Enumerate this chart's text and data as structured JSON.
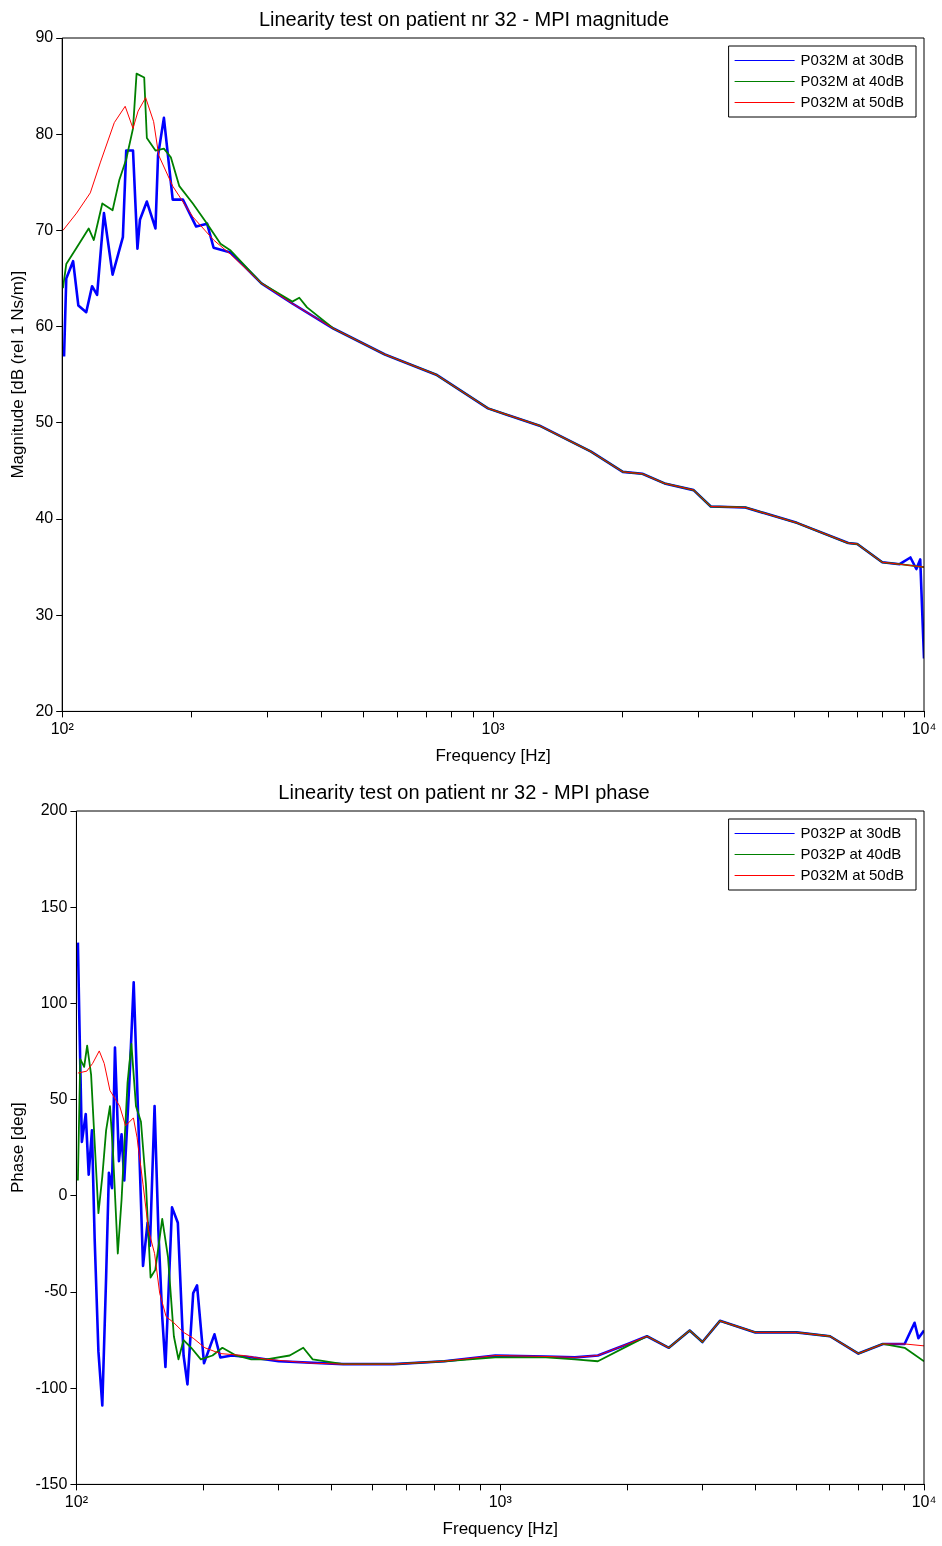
{
  "chart_data": [
    {
      "type": "line",
      "title": "Linearity test on patient nr 32 - MPI magnitude",
      "xlabel": "Frequency [Hz]",
      "ylabel": "Magnitude [dB (rel 1 Ns/m)]",
      "log": "x",
      "xlim": [
        100,
        10000
      ],
      "xticks": [
        {
          "value": 100,
          "label": "10²"
        },
        {
          "value": 200,
          "label": null
        },
        {
          "value": 300,
          "label": null
        },
        {
          "value": 400,
          "label": null
        },
        {
          "value": 500,
          "label": null
        },
        {
          "value": 600,
          "label": null
        },
        {
          "value": 700,
          "label": null
        },
        {
          "value": 800,
          "label": null
        },
        {
          "value": 900,
          "label": null
        },
        {
          "value": 1000,
          "label": "10³"
        },
        {
          "value": 2000,
          "label": null
        },
        {
          "value": 3000,
          "label": null
        },
        {
          "value": 4000,
          "label": null
        },
        {
          "value": 5000,
          "label": null
        },
        {
          "value": 6000,
          "label": null
        },
        {
          "value": 7000,
          "label": null
        },
        {
          "value": 8000,
          "label": null
        },
        {
          "value": 9000,
          "label": null
        },
        {
          "value": 10000,
          "label": "10⁴"
        }
      ],
      "ylim": [
        20,
        90
      ],
      "yticks": [
        20,
        30,
        40,
        50,
        60,
        70,
        80,
        90
      ],
      "grid": false,
      "legend": "top right",
      "marker": "none",
      "line_style": "solid",
      "series": [
        {
          "name": "P032M at 30dB",
          "color": "#0000ff",
          "x": [
            101,
            102.2,
            106,
            109,
            113.7,
            117.3,
            120.5,
            125,
            130.9,
            138.3,
            140.8,
            146,
            149.5,
            151.5,
            157.2,
            164.6,
            166.9,
            172.2,
            180.5,
            190.6,
            204.6,
            216.9,
            224.6,
            246,
            290,
            342,
            426,
            561,
            738,
            973,
            1282,
            1688,
            2000,
            2220,
            2500,
            2920,
            3200,
            3850,
            5070,
            6670,
            7000,
            8000,
            8780,
            9300,
            9600,
            9800,
            10000
          ],
          "values": [
            56.9,
            65,
            66.8,
            62.2,
            61.5,
            64.2,
            63.3,
            71.8,
            65.4,
            69.3,
            78.3,
            78.3,
            68.1,
            71.1,
            73,
            70.2,
            77.8,
            81.7,
            73.2,
            73.2,
            70.4,
            70.7,
            68.2,
            67.7,
            64.5,
            62.4,
            59.8,
            57.1,
            55,
            51.5,
            49.7,
            47,
            44.9,
            44.7,
            43.7,
            43,
            41.3,
            41.2,
            39.6,
            37.5,
            37.4,
            35.5,
            35.3,
            36,
            34.8,
            35.8,
            25.5
          ]
        },
        {
          "name": "P032M at 40dB",
          "color": "#008000",
          "x": [
            100.4,
            102.2,
            108,
            115.2,
            118.4,
            123.9,
            130.9,
            135.8,
            140.8,
            146,
            148.8,
            155,
            157.2,
            164.6,
            172.2,
            178.7,
            187,
            201,
            216.9,
            233,
            246,
            290,
            342,
            355,
            370,
            426,
            561,
            738,
            973,
            1282,
            1688,
            2000,
            2220,
            2500,
            2920,
            3200,
            3850,
            5070,
            6670,
            7000,
            8000,
            8780,
            10000
          ],
          "values": [
            64,
            66.5,
            68.2,
            70.2,
            69,
            72.8,
            72.1,
            75.3,
            77.4,
            80.6,
            86.3,
            85.9,
            79.6,
            78.3,
            78.5,
            77.6,
            74.6,
            72.8,
            70.7,
            68.6,
            67.9,
            64.5,
            62.6,
            63,
            62,
            59.8,
            57.1,
            55,
            51.5,
            49.7,
            47,
            44.9,
            44.7,
            43.7,
            43,
            41.3,
            41.2,
            39.6,
            37.5,
            37.4,
            35.5,
            35.3,
            35
          ]
        },
        {
          "name": "P032M at 50dB",
          "color": "#ff0000",
          "x": [
            100.4,
            108,
            116.2,
            122.7,
            132.1,
            140,
            146,
            150,
            156.2,
            163,
            167.5,
            180.5,
            201,
            224.6,
            246,
            290,
            342,
            426,
            561,
            738,
            973,
            1282,
            1688,
            2000,
            2220,
            2500,
            2920,
            3200,
            3850,
            5070,
            6670,
            7000,
            8000,
            8780,
            10000
          ],
          "values": [
            70,
            71.8,
            73.9,
            77.1,
            81.2,
            82.9,
            80.6,
            82.4,
            83.8,
            81.3,
            77.8,
            74.6,
            71.4,
            69,
            67.5,
            64.5,
            62.4,
            59.8,
            57.1,
            55,
            51.5,
            49.7,
            47,
            44.9,
            44.7,
            43.7,
            43,
            41.3,
            41.2,
            39.6,
            37.5,
            37.4,
            35.5,
            35.3,
            35
          ]
        }
      ]
    },
    {
      "type": "line",
      "title": "Linearity test on patient nr 32 - MPI phase",
      "xlabel": "Frequency [Hz]",
      "ylabel": "Phase [deg]",
      "log": "x",
      "xlim": [
        100,
        10000
      ],
      "xticks": [
        {
          "value": 100,
          "label": "10²"
        },
        {
          "value": 200,
          "label": null
        },
        {
          "value": 300,
          "label": null
        },
        {
          "value": 400,
          "label": null
        },
        {
          "value": 500,
          "label": null
        },
        {
          "value": 600,
          "label": null
        },
        {
          "value": 700,
          "label": null
        },
        {
          "value": 800,
          "label": null
        },
        {
          "value": 900,
          "label": null
        },
        {
          "value": 1000,
          "label": "10³"
        },
        {
          "value": 2000,
          "label": null
        },
        {
          "value": 3000,
          "label": null
        },
        {
          "value": 4000,
          "label": null
        },
        {
          "value": 5000,
          "label": null
        },
        {
          "value": 6000,
          "label": null
        },
        {
          "value": 7000,
          "label": null
        },
        {
          "value": 8000,
          "label": null
        },
        {
          "value": 9000,
          "label": null
        },
        {
          "value": 10000,
          "label": "10⁴"
        }
      ],
      "ylim": [
        -150,
        200
      ],
      "yticks": [
        -150,
        -100,
        -50,
        0,
        50,
        100,
        150,
        200
      ],
      "grid": false,
      "legend": "top right",
      "marker": "none",
      "line_style": "solid",
      "series": [
        {
          "name": "P032P at 30dB",
          "color": "#0000ff",
          "x": [
            100.8,
            101.7,
            103,
            105.2,
            106.9,
            108.8,
            110.4,
            112.7,
            115.1,
            117.5,
            119.3,
            121.3,
            123.3,
            126,
            127.8,
            129.7,
            133.3,
            136.5,
            140,
            143.6,
            147.2,
            149.1,
            152.9,
            156.1,
            159.4,
            162.2,
            168.1,
            173.5,
            179,
            182.8,
            188.6,
            192.6,
            200,
            211.7,
            218.6,
            232.6,
            260,
            300,
            426,
            561,
            738,
            973,
            1282,
            1500,
            1700,
            2000,
            2220,
            2500,
            2800,
            3000,
            3300,
            4000,
            5000,
            6000,
            7000,
            8000,
            9000,
            9500,
            9700,
            10000
          ],
          "values": [
            131.6,
            87,
            28,
            42.5,
            11,
            34,
            -22,
            -81,
            -109,
            -42.5,
            12,
            4,
            77,
            18,
            32,
            8,
            58.7,
            111,
            38.5,
            -36.4,
            -14,
            -26,
            46.6,
            -18,
            -63,
            -89,
            -6,
            -14,
            -83,
            -98,
            -50.6,
            -46.6,
            -87,
            -72,
            -84,
            -83,
            -84,
            -86,
            -87.5,
            -87.5,
            -86,
            -83,
            -83.5,
            -84,
            -83,
            -77,
            -73,
            -79,
            -70,
            -76,
            -65,
            -71,
            -71,
            -73,
            -82,
            -77,
            -77,
            -66,
            -74,
            -70
          ]
        },
        {
          "name": "P032P at 40dB",
          "color": "#008000",
          "x": [
            100.8,
            102.1,
            104.3,
            106,
            108.3,
            110.4,
            112.7,
            115.1,
            117.5,
            120,
            121.9,
            125.2,
            127.8,
            132,
            134.8,
            138.2,
            142,
            145.9,
            149.6,
            153.5,
            159.4,
            164.5,
            169.8,
            174.1,
            179,
            186.6,
            196.6,
            209.5,
            221,
            238,
            258.5,
            281,
            318.6,
            343,
            361,
            426,
            561,
            738,
            973,
            1282,
            1500,
            1700,
            2000,
            2220,
            2500,
            2800,
            3000,
            3300,
            4000,
            5000,
            6000,
            7000,
            8000,
            9000,
            10000
          ],
          "values": [
            8,
            71,
            67,
            78,
            63,
            28,
            -9,
            10,
            34,
            46.6,
            24,
            -30,
            -2,
            58.7,
            79,
            46.6,
            38.5,
            6,
            -42.5,
            -38.5,
            -12,
            -32,
            -73,
            -85,
            -75,
            -79,
            -85,
            -83,
            -79,
            -83,
            -85,
            -85,
            -83,
            -79,
            -85,
            -87.5,
            -87.5,
            -86,
            -84,
            -84,
            -85,
            -86,
            -78,
            -73,
            -79,
            -70,
            -76,
            -65,
            -71,
            -71,
            -73,
            -82,
            -77,
            -79,
            -86
          ]
        },
        {
          "name": "P032M at 50dB",
          "color": "#ff0000",
          "x": [
            100.8,
            105.8,
            109.2,
            113.2,
            116.3,
            120,
            126.5,
            130.6,
            136.3,
            139,
            143.6,
            148,
            152.9,
            157.2,
            162.8,
            169.8,
            179,
            188.6,
            201,
            218.6,
            247.5,
            281,
            361,
            426,
            561,
            738,
            973,
            1282,
            1500,
            1700,
            2000,
            2220,
            2500,
            2800,
            3000,
            3300,
            4000,
            5000,
            6000,
            7000,
            8000,
            9000,
            10000
          ],
          "values": [
            63.8,
            64.8,
            68.8,
            75.3,
            68.8,
            54.7,
            46.6,
            36.4,
            40.5,
            30.4,
            6,
            -18,
            -30,
            -50.6,
            -62.8,
            -66,
            -71,
            -74,
            -79,
            -82,
            -83,
            -85,
            -87,
            -87.5,
            -87.5,
            -86,
            -83,
            -83.5,
            -84,
            -83,
            -77,
            -73,
            -79,
            -70,
            -76,
            -65,
            -71,
            -71,
            -73,
            -82,
            -77,
            -77,
            -78
          ]
        }
      ]
    }
  ]
}
